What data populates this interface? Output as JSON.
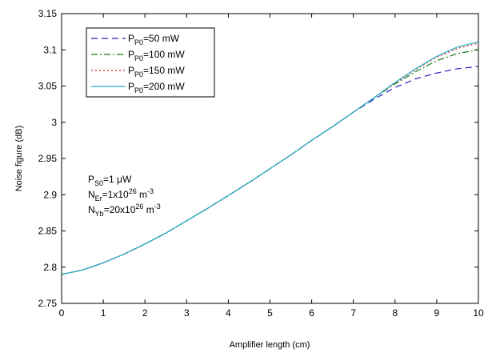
{
  "chart_data": {
    "type": "line",
    "title": "",
    "xlabel": "Amplifier length (cm)",
    "ylabel": "Noise figure (dB)",
    "xlim": [
      0,
      10
    ],
    "ylim": [
      2.75,
      3.15
    ],
    "xticks": [
      "0",
      "1",
      "2",
      "3",
      "4",
      "5",
      "6",
      "7",
      "8",
      "9",
      "10"
    ],
    "yticks": [
      "2.75",
      "2.8",
      "2.85",
      "2.9",
      "2.95",
      "3",
      "3.05",
      "3.1",
      "3.15"
    ],
    "grid": false,
    "legend_position": "top-left",
    "x": [
      0,
      0.5,
      1,
      1.5,
      2,
      2.5,
      3,
      3.5,
      4,
      4.5,
      5,
      5.5,
      6,
      6.5,
      7,
      7.5,
      8,
      8.5,
      9,
      9.5,
      10
    ],
    "series": [
      {
        "name_main": "P",
        "name_sub": "P0",
        "name_rest": "=50 mW",
        "color": "#1f1fbf",
        "dash": "8,5",
        "values": [
          2.79,
          2.796,
          2.806,
          2.818,
          2.832,
          2.847,
          2.864,
          2.881,
          2.899,
          2.917,
          2.936,
          2.955,
          2.975,
          2.994,
          3.014,
          3.032,
          3.048,
          3.06,
          3.068,
          3.074,
          3.077
        ]
      },
      {
        "name_main": "P",
        "name_sub": "P0",
        "name_rest": "=100 mW",
        "color": "#1a7a1a",
        "dash": "8,3,2,3",
        "values": [
          2.79,
          2.796,
          2.806,
          2.818,
          2.832,
          2.847,
          2.864,
          2.881,
          2.899,
          2.917,
          2.936,
          2.955,
          2.975,
          2.994,
          3.014,
          3.034,
          3.053,
          3.07,
          3.085,
          3.095,
          3.1
        ]
      },
      {
        "name_main": "P",
        "name_sub": "P0",
        "name_rest": "=150 mW",
        "color": "#e02020",
        "dash": "2,3",
        "values": [
          2.79,
          2.796,
          2.806,
          2.818,
          2.832,
          2.847,
          2.864,
          2.881,
          2.899,
          2.917,
          2.936,
          2.955,
          2.975,
          2.994,
          3.014,
          3.034,
          3.054,
          3.073,
          3.09,
          3.102,
          3.109
        ]
      },
      {
        "name_main": "P",
        "name_sub": "P0",
        "name_rest": "=200 mW",
        "color": "#20b0c8",
        "dash": "",
        "values": [
          2.79,
          2.796,
          2.806,
          2.818,
          2.832,
          2.847,
          2.864,
          2.881,
          2.899,
          2.917,
          2.936,
          2.955,
          2.975,
          2.994,
          3.014,
          3.034,
          3.055,
          3.074,
          3.091,
          3.104,
          3.111
        ]
      }
    ],
    "annotations": [
      {
        "main": "P",
        "sub": "S0",
        "rest": "=1 μW",
        "sup": "",
        "tail": ""
      },
      {
        "main": "N",
        "sub": "Er",
        "rest": "=1x10",
        "sup": "26",
        "tail": " m",
        "sup2": "-3"
      },
      {
        "main": "N",
        "sub": "Yb",
        "rest": "=20x10",
        "sup": "26",
        "tail": " m",
        "sup2": "-3"
      }
    ]
  }
}
